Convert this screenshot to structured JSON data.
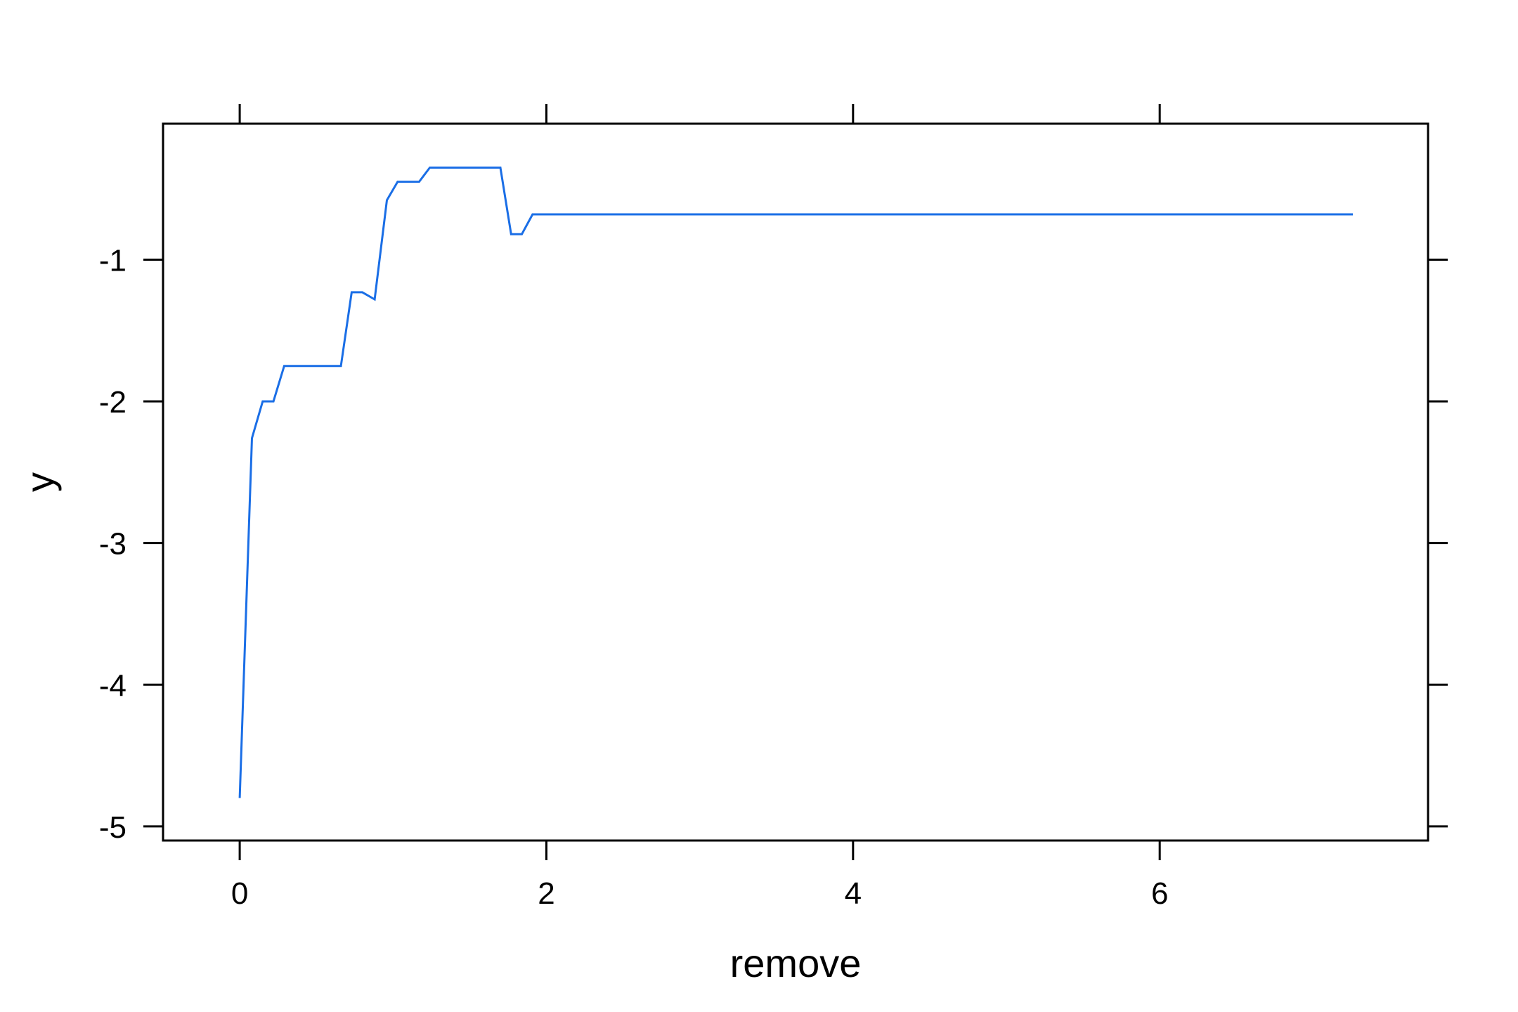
{
  "chart_data": {
    "type": "line",
    "title": "",
    "xlabel": "remove",
    "ylabel": "y",
    "xlim": [
      -0.5,
      7.75
    ],
    "ylim": [
      -5.1,
      -0.04
    ],
    "xticks": [
      0,
      2,
      4,
      6
    ],
    "yticks": [
      -5,
      -4,
      -3,
      -2,
      -1
    ],
    "xtick_labels": [
      "0",
      "2",
      "4",
      "6"
    ],
    "ytick_labels": [
      "-5",
      "-4",
      "-3",
      "-2",
      "-1"
    ],
    "grid": false,
    "series": [
      {
        "color": "#1a6ee6",
        "x": [
          0,
          0.08,
          0.15,
          0.22,
          0.29,
          0.66,
          0.73,
          0.8,
          0.88,
          0.96,
          1.03,
          1.17,
          1.24,
          1.7,
          1.77,
          1.84,
          1.91,
          7.26
        ],
        "y": [
          -4.8,
          -2.26,
          -2.0,
          -2.0,
          -1.75,
          -1.75,
          -1.23,
          -1.23,
          -1.28,
          -0.58,
          -0.45,
          -0.45,
          -0.35,
          -0.35,
          -0.82,
          -0.82,
          -0.68,
          -0.68
        ]
      }
    ]
  }
}
